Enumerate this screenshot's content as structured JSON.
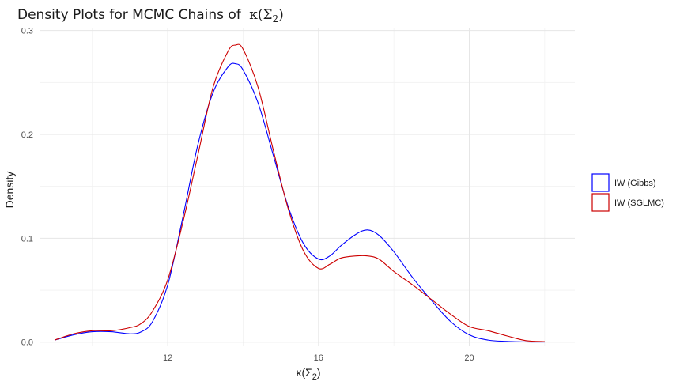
{
  "chart_data": {
    "type": "line",
    "title": "Density Plots for MCMC Chains of",
    "title_math": "κ(Σ",
    "title_math_sub": "2",
    "title_math_close": ")",
    "xlabel_math": "κ(Σ",
    "xlabel_math_sub": "2",
    "xlabel_math_close": ")",
    "ylabel": "Density",
    "xlim": [
      8.6,
      22.8
    ],
    "ylim": [
      -0.004,
      0.302
    ],
    "x_ticks": [
      12,
      16,
      20
    ],
    "x_tick_labels": [
      "12",
      "16",
      "20"
    ],
    "x_minor_ticks": [
      10,
      14,
      18,
      22
    ],
    "y_ticks": [
      0.0,
      0.1,
      0.2,
      0.3
    ],
    "y_tick_labels": [
      "0.0",
      "0.1",
      "0.2",
      "0.3"
    ],
    "y_minor_ticks": [
      0.05,
      0.15,
      0.25
    ],
    "grid": true,
    "legend_position": "right",
    "series": [
      {
        "name": "IW (Gibbs)",
        "color": "#0000ff",
        "x": [
          9.0,
          9.5,
          10.0,
          10.5,
          11.0,
          11.3,
          11.6,
          12.0,
          12.4,
          12.8,
          13.2,
          13.6,
          13.8,
          14.0,
          14.4,
          14.8,
          15.2,
          15.6,
          16.0,
          16.3,
          16.6,
          17.0,
          17.3,
          17.6,
          18.0,
          18.5,
          19.0,
          19.5,
          20.0,
          20.5,
          21.0,
          21.5,
          22.0
        ],
        "y": [
          0.002,
          0.007,
          0.01,
          0.01,
          0.008,
          0.01,
          0.02,
          0.055,
          0.12,
          0.19,
          0.24,
          0.265,
          0.268,
          0.262,
          0.23,
          0.18,
          0.13,
          0.095,
          0.08,
          0.083,
          0.093,
          0.104,
          0.108,
          0.103,
          0.087,
          0.062,
          0.04,
          0.02,
          0.007,
          0.002,
          0.0007,
          0.0002,
          0.0001
        ]
      },
      {
        "name": "IW (SGLMC)",
        "color": "#cc0000",
        "x": [
          9.0,
          9.5,
          10.0,
          10.5,
          11.0,
          11.3,
          11.6,
          12.0,
          12.4,
          12.8,
          13.2,
          13.6,
          13.8,
          14.0,
          14.4,
          14.8,
          15.2,
          15.6,
          16.0,
          16.3,
          16.6,
          17.0,
          17.3,
          17.6,
          18.0,
          18.5,
          19.0,
          19.5,
          20.0,
          20.5,
          21.0,
          21.5,
          22.0
        ],
        "y": [
          0.002,
          0.008,
          0.011,
          0.011,
          0.014,
          0.018,
          0.03,
          0.06,
          0.115,
          0.18,
          0.245,
          0.28,
          0.286,
          0.282,
          0.245,
          0.185,
          0.128,
          0.088,
          0.071,
          0.075,
          0.081,
          0.083,
          0.083,
          0.08,
          0.068,
          0.055,
          0.041,
          0.027,
          0.015,
          0.011,
          0.006,
          0.0015,
          0.0005
        ]
      }
    ]
  }
}
